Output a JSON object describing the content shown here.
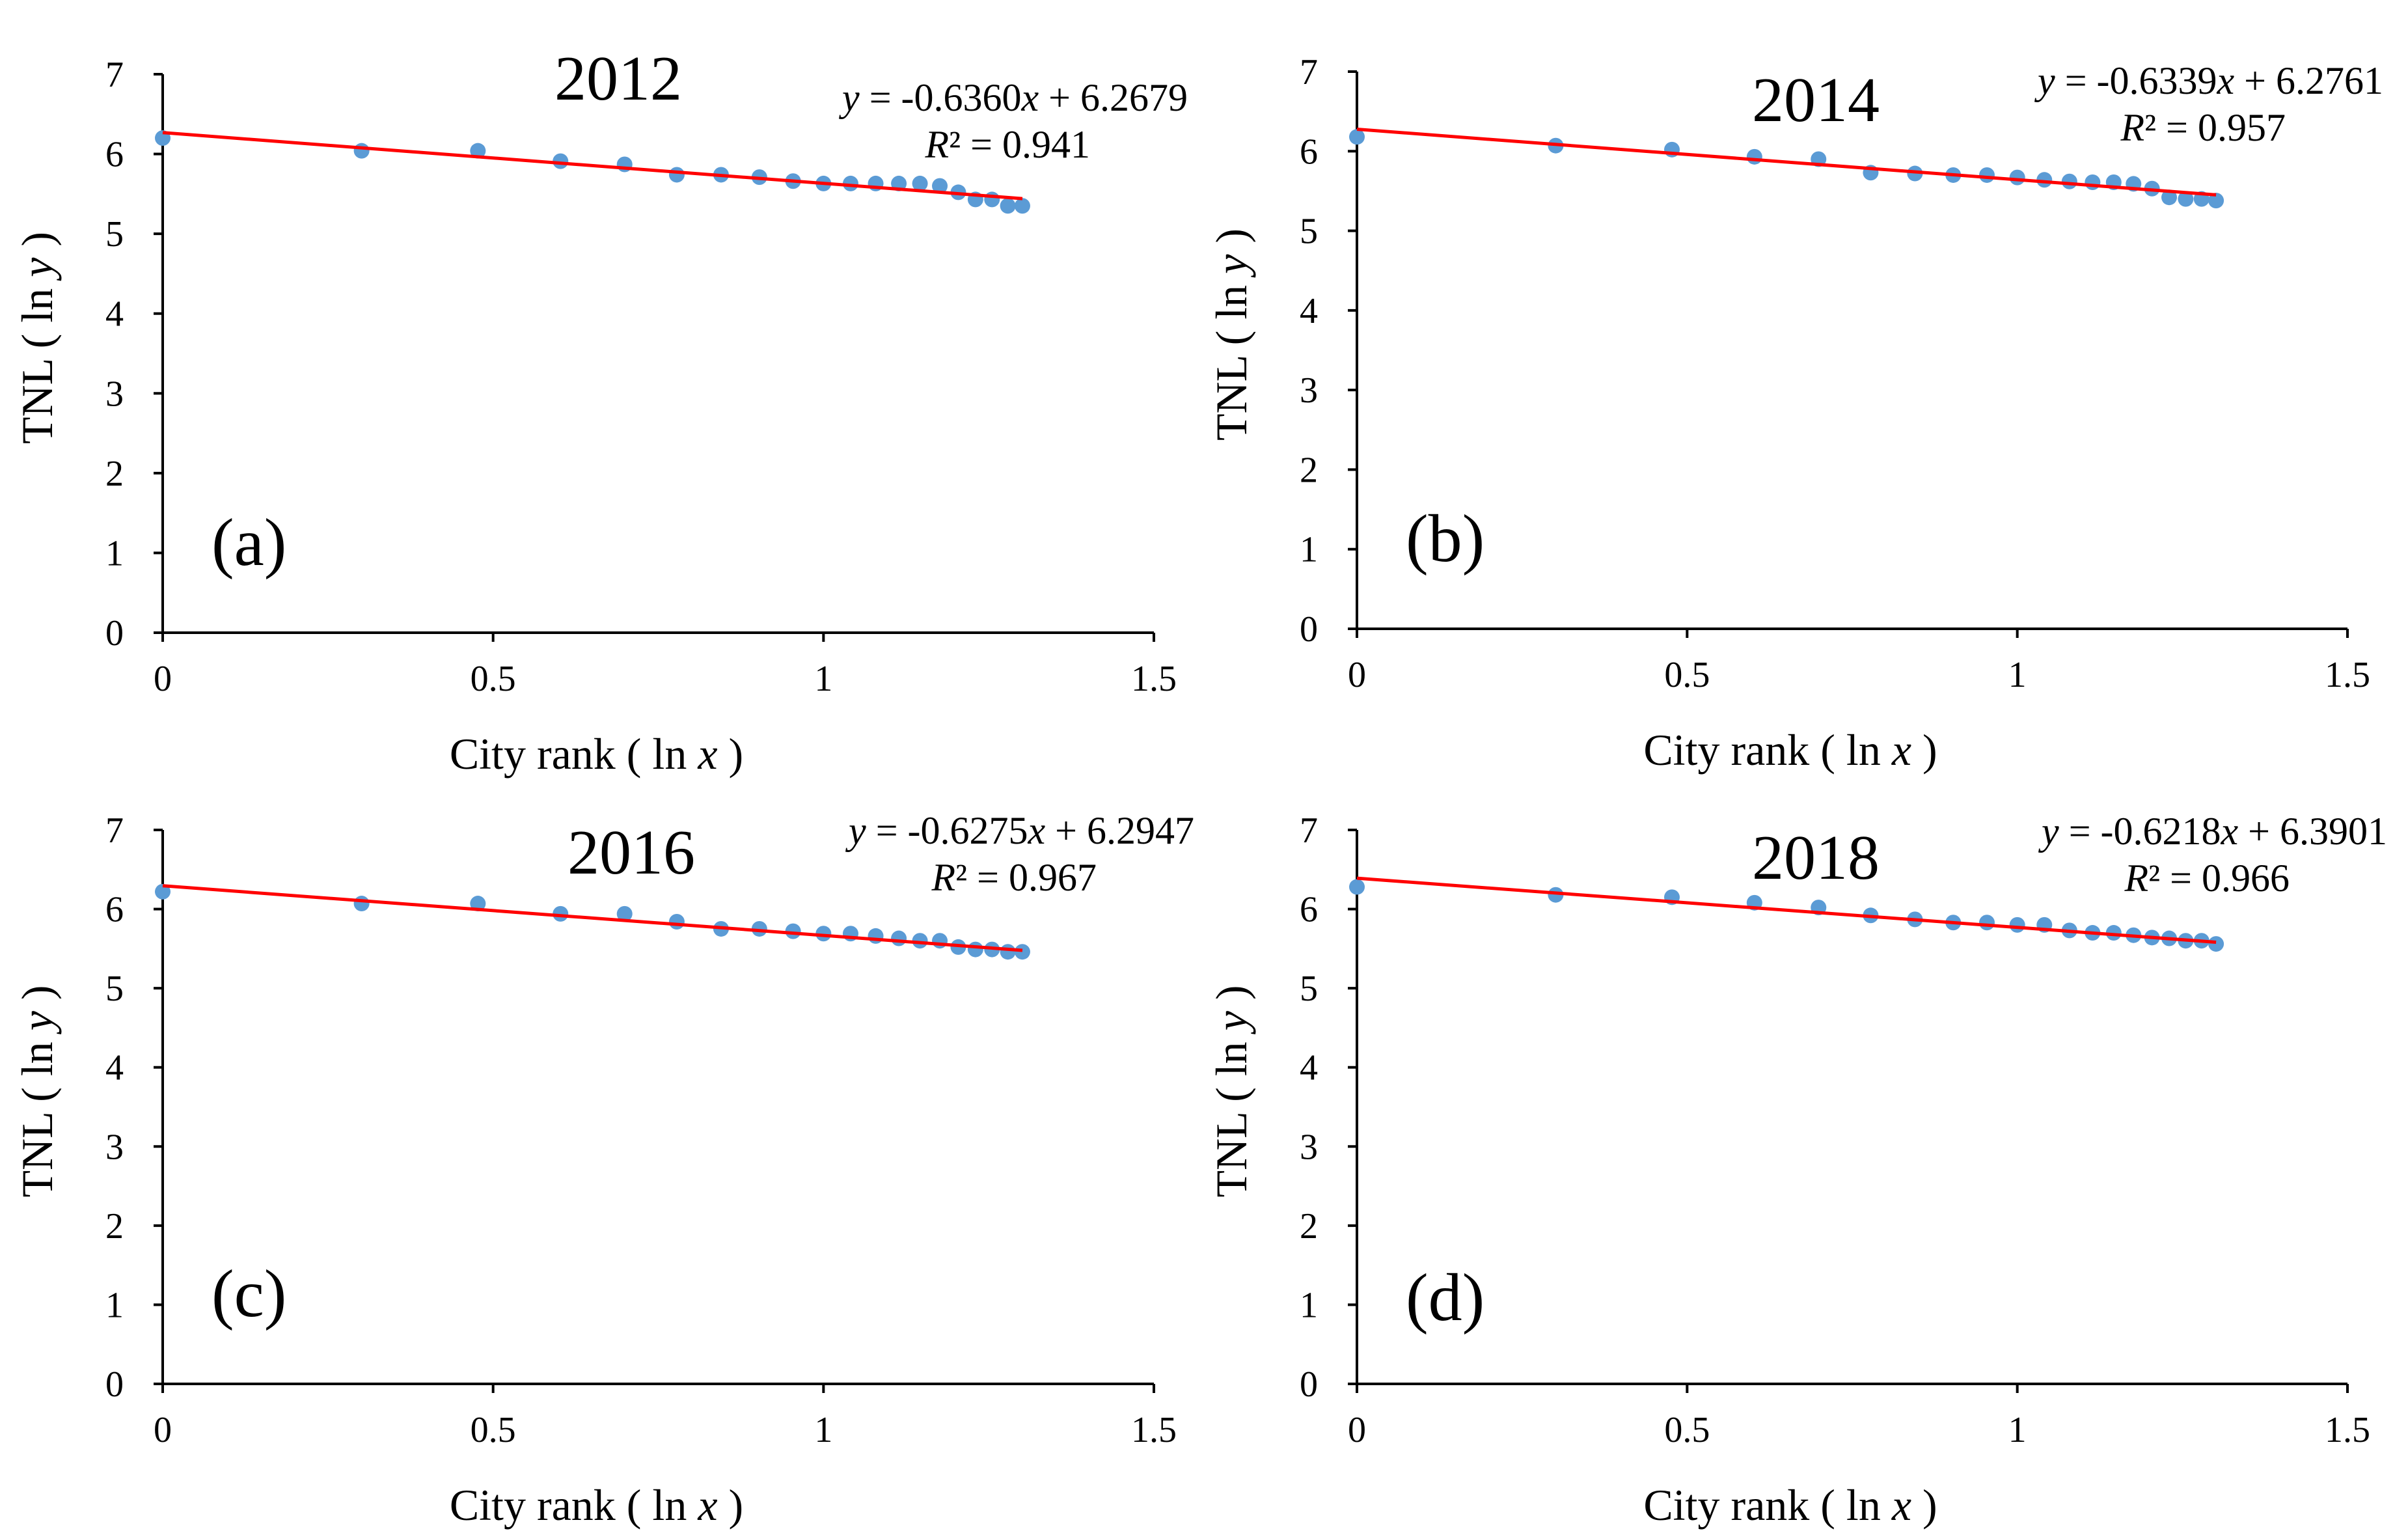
{
  "chart_data": [
    {
      "type": "scatter",
      "title": "2012",
      "panel_label": "(a)",
      "xlabel": {
        "prefix": "City rank ( ln ",
        "var": "x",
        "suffix": " )"
      },
      "ylabel": {
        "prefix": "TNL ( ln ",
        "var": "y",
        "suffix": " )"
      },
      "xlim": [
        0,
        1.5
      ],
      "ylim": [
        0,
        7
      ],
      "x_ticks": [
        0,
        0.5,
        1,
        1.5
      ],
      "x_tick_labels": [
        "0",
        "0.5",
        "1",
        "1.5"
      ],
      "y_ticks": [
        0,
        1,
        2,
        3,
        4,
        5,
        6,
        7
      ],
      "y_tick_labels": [
        "0",
        "1",
        "2",
        "3",
        "4",
        "5",
        "6",
        "7"
      ],
      "grid": false,
      "legend": "none",
      "marker_color": "#5b9bd5",
      "trendline_color": "#ff0000",
      "trendline": {
        "slope": -0.636,
        "intercept": 6.2679,
        "x_range": [
          0,
          1.301
        ]
      },
      "equation": {
        "y": "y",
        "mid": " = -0.6360",
        "x": "x",
        "tail": " + 6.2679"
      },
      "r2": {
        "r": "R",
        "rest": "² = 0.941"
      },
      "series": [
        {
          "x": [
            0,
            0.301,
            0.477,
            0.602,
            0.699,
            0.778,
            0.845,
            0.903,
            0.954,
            1.0,
            1.041,
            1.079,
            1.114,
            1.146,
            1.176,
            1.204,
            1.23,
            1.255,
            1.279,
            1.301
          ],
          "y": [
            6.2,
            6.04,
            6.04,
            5.91,
            5.87,
            5.74,
            5.74,
            5.71,
            5.66,
            5.63,
            5.63,
            5.63,
            5.63,
            5.63,
            5.6,
            5.52,
            5.43,
            5.43,
            5.35,
            5.35
          ]
        }
      ]
    },
    {
      "type": "scatter",
      "title": "2014",
      "panel_label": "(b)",
      "xlabel": {
        "prefix": "City rank ( ln ",
        "var": "x",
        "suffix": " )"
      },
      "ylabel": {
        "prefix": "TNL ( ln ",
        "var": "y",
        "suffix": " )"
      },
      "xlim": [
        0,
        1.5
      ],
      "ylim": [
        0,
        7
      ],
      "x_ticks": [
        0,
        0.5,
        1,
        1.5
      ],
      "x_tick_labels": [
        "0",
        "0.5",
        "1",
        "1.5"
      ],
      "y_ticks": [
        0,
        1,
        2,
        3,
        4,
        5,
        6,
        7
      ],
      "y_tick_labels": [
        "0",
        "1",
        "2",
        "3",
        "4",
        "5",
        "6",
        "7"
      ],
      "grid": false,
      "legend": "none",
      "marker_color": "#5b9bd5",
      "trendline_color": "#ff0000",
      "trendline": {
        "slope": -0.6339,
        "intercept": 6.2761,
        "x_range": [
          0,
          1.301
        ]
      },
      "equation": {
        "y": "y",
        "mid": " = -0.6339",
        "x": "x",
        "tail": " + 6.2761"
      },
      "r2": {
        "r": "R",
        "rest": "² = 0.957"
      },
      "series": [
        {
          "x": [
            0,
            0.301,
            0.477,
            0.602,
            0.699,
            0.778,
            0.845,
            0.903,
            0.954,
            1.0,
            1.041,
            1.079,
            1.114,
            1.146,
            1.176,
            1.204,
            1.23,
            1.255,
            1.279,
            1.301
          ],
          "y": [
            6.18,
            6.07,
            6.02,
            5.93,
            5.9,
            5.73,
            5.72,
            5.7,
            5.7,
            5.67,
            5.64,
            5.62,
            5.61,
            5.61,
            5.59,
            5.53,
            5.42,
            5.4,
            5.4,
            5.38
          ]
        }
      ]
    },
    {
      "type": "scatter",
      "title": "2016",
      "panel_label": "(c)",
      "xlabel": {
        "prefix": "City rank ( ln ",
        "var": "x",
        "suffix": " )"
      },
      "ylabel": {
        "prefix": "TNL ( ln ",
        "var": "y",
        "suffix": " )"
      },
      "xlim": [
        0,
        1.5
      ],
      "ylim": [
        0,
        7
      ],
      "x_ticks": [
        0,
        0.5,
        1,
        1.5
      ],
      "x_tick_labels": [
        "0",
        "0.5",
        "1",
        "1.5"
      ],
      "y_ticks": [
        0,
        1,
        2,
        3,
        4,
        5,
        6,
        7
      ],
      "y_tick_labels": [
        "0",
        "1",
        "2",
        "3",
        "4",
        "5",
        "6",
        "7"
      ],
      "grid": false,
      "legend": "none",
      "marker_color": "#5b9bd5",
      "trendline_color": "#ff0000",
      "trendline": {
        "slope": -0.6275,
        "intercept": 6.2947,
        "x_range": [
          0,
          1.301
        ]
      },
      "equation": {
        "y": "y",
        "mid": " = -0.6275",
        "x": "x",
        "tail": " + 6.2947"
      },
      "r2": {
        "r": "R",
        "rest": "² = 0.967"
      },
      "series": [
        {
          "x": [
            0,
            0.301,
            0.477,
            0.602,
            0.699,
            0.778,
            0.845,
            0.903,
            0.954,
            1.0,
            1.041,
            1.079,
            1.114,
            1.146,
            1.176,
            1.204,
            1.23,
            1.255,
            1.279,
            1.301
          ],
          "y": [
            6.22,
            6.07,
            6.07,
            5.94,
            5.94,
            5.84,
            5.75,
            5.75,
            5.72,
            5.69,
            5.69,
            5.66,
            5.63,
            5.6,
            5.6,
            5.52,
            5.49,
            5.49,
            5.46,
            5.46
          ]
        }
      ]
    },
    {
      "type": "scatter",
      "title": "2018",
      "panel_label": "(d)",
      "xlabel": {
        "prefix": "City rank ( ln ",
        "var": "x",
        "suffix": " )"
      },
      "ylabel": {
        "prefix": "TNL ( ln ",
        "var": "y",
        "suffix": " )"
      },
      "xlim": [
        0,
        1.5
      ],
      "ylim": [
        0,
        7
      ],
      "x_ticks": [
        0,
        0.5,
        1,
        1.5
      ],
      "x_tick_labels": [
        "0",
        "0.5",
        "1",
        "1.5"
      ],
      "y_ticks": [
        0,
        1,
        2,
        3,
        4,
        5,
        6,
        7
      ],
      "y_tick_labels": [
        "0",
        "1",
        "2",
        "3",
        "4",
        "5",
        "6",
        "7"
      ],
      "grid": false,
      "legend": "none",
      "marker_color": "#5b9bd5",
      "trendline_color": "#ff0000",
      "trendline": {
        "slope": -0.6218,
        "intercept": 6.3901,
        "x_range": [
          0,
          1.301
        ]
      },
      "equation": {
        "y": "y",
        "mid": " = -0.6218",
        "x": "x",
        "tail": " + 6.3901"
      },
      "r2": {
        "r": "R",
        "rest": "² = 0.966"
      },
      "series": [
        {
          "x": [
            0,
            0.301,
            0.477,
            0.602,
            0.699,
            0.778,
            0.845,
            0.903,
            0.954,
            1.0,
            1.041,
            1.079,
            1.114,
            1.146,
            1.176,
            1.204,
            1.23,
            1.255,
            1.279,
            1.301
          ],
          "y": [
            6.28,
            6.18,
            6.15,
            6.08,
            6.02,
            5.92,
            5.87,
            5.83,
            5.83,
            5.8,
            5.8,
            5.73,
            5.7,
            5.7,
            5.67,
            5.64,
            5.63,
            5.6,
            5.6,
            5.56
          ]
        }
      ]
    }
  ]
}
